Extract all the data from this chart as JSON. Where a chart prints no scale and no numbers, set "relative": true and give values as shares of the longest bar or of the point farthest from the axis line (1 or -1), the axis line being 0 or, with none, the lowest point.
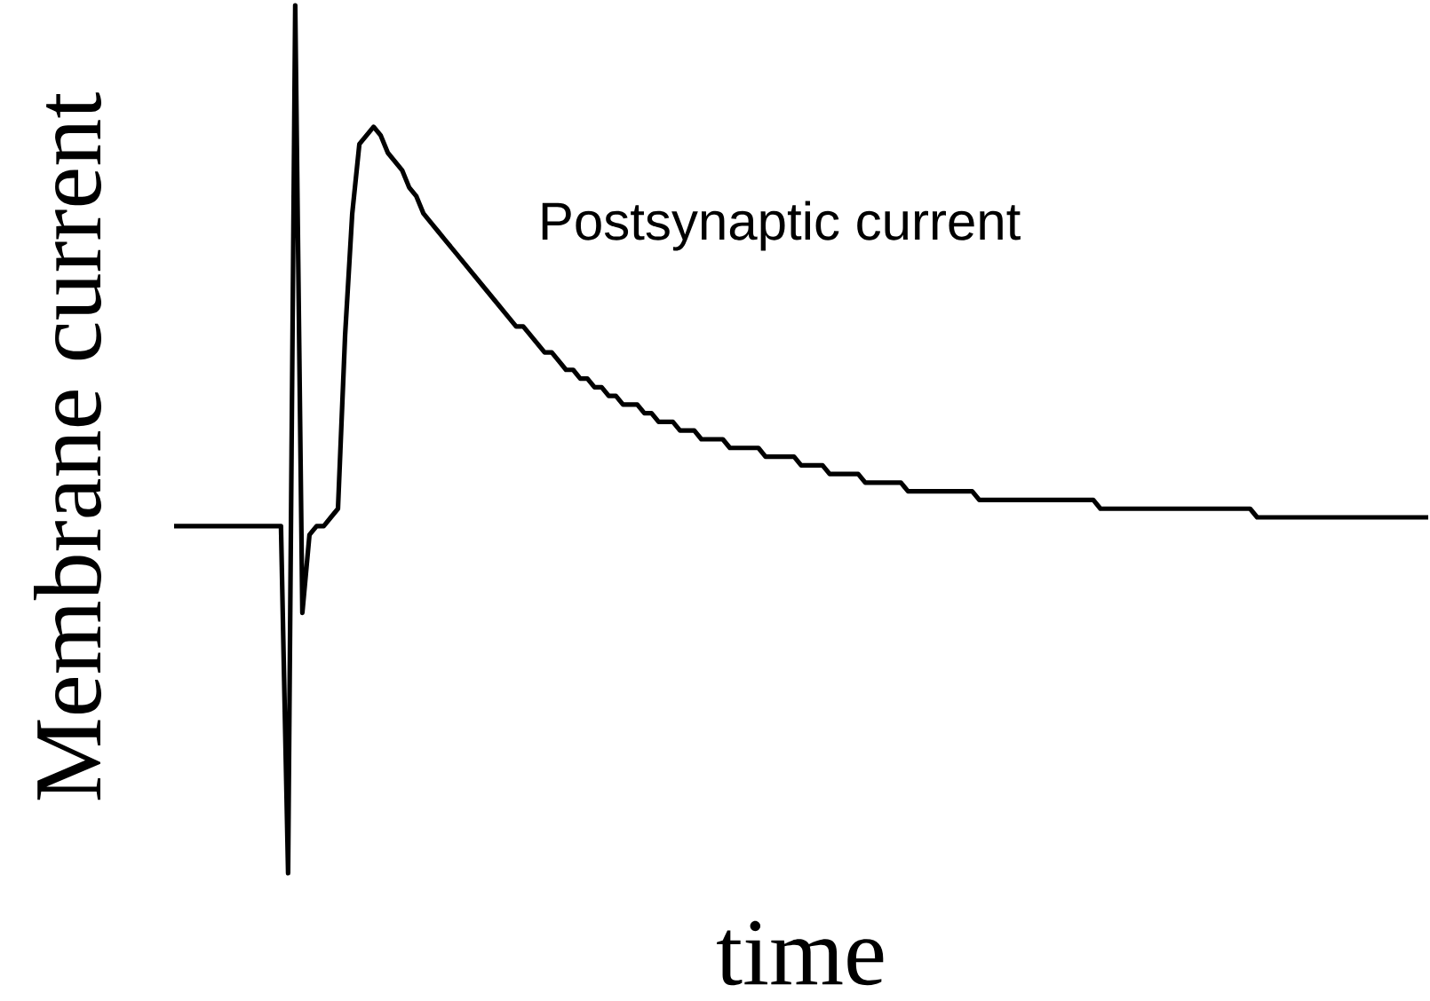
{
  "chart_data": {
    "type": "line",
    "relative": true,
    "xlabel": "time",
    "ylabel": "Membrane current",
    "annotations": [
      "Postsynaptic current"
    ],
    "categories": [
      null,
      null,
      null,
      null,
      null,
      null,
      null,
      null,
      null,
      null,
      null,
      null,
      null,
      null,
      null,
      null,
      null,
      null,
      null,
      null,
      null,
      null,
      null,
      null,
      null,
      null,
      null,
      null,
      null,
      null,
      null,
      null,
      null,
      null,
      null,
      null,
      null,
      null,
      null,
      null,
      null,
      null,
      null,
      null,
      null,
      null,
      null,
      null,
      null,
      null,
      null,
      null,
      null,
      null,
      null,
      null,
      null,
      null,
      null,
      null,
      null,
      null,
      null,
      null,
      null,
      null,
      null,
      null,
      null,
      null,
      null,
      null,
      null,
      null,
      null,
      null,
      null,
      null,
      null,
      null,
      null,
      null,
      null,
      null,
      null,
      null,
      null,
      null,
      null,
      null,
      null,
      null,
      null,
      null,
      null,
      null,
      null,
      null,
      null,
      null,
      null,
      null,
      null,
      null,
      null,
      null,
      null,
      null,
      null,
      null,
      null,
      null,
      null,
      null,
      null,
      null,
      null,
      null,
      null,
      null,
      null,
      null,
      null,
      null,
      null,
      null,
      null,
      null,
      null,
      null,
      null,
      null,
      null,
      null,
      null,
      null,
      null,
      null,
      null,
      null,
      null,
      null,
      null,
      null,
      null,
      null,
      null,
      null,
      null,
      null,
      null,
      null,
      null,
      null,
      null,
      null,
      null,
      null,
      null,
      null,
      null,
      null,
      null,
      null,
      null,
      null,
      null,
      null,
      null,
      null,
      null,
      null,
      null,
      null,
      null,
      null,
      null
    ],
    "series": [
      {
        "color": "#000000",
        "values": [
          0.4,
          0.4,
          0.4,
          0.4,
          0.4,
          0.4,
          0.4,
          0.4,
          0.4,
          0.4,
          0.4,
          0.4,
          0.4,
          0.4,
          0.4,
          0.4,
          0,
          1,
          0.3,
          0.39,
          0.4,
          0.4,
          0.41,
          0.42,
          0.62,
          0.76,
          0.84,
          0.85,
          0.86,
          0.85,
          0.83,
          0.82,
          0.81,
          0.79,
          0.78,
          0.76,
          0.75,
          0.74,
          0.73,
          0.72,
          0.71,
          0.7,
          0.69,
          0.68,
          0.67,
          0.66,
          0.65,
          0.64,
          0.63,
          0.63,
          0.62,
          0.61,
          0.6,
          0.6,
          0.59,
          0.58,
          0.58,
          0.57,
          0.57,
          0.56,
          0.56,
          0.55,
          0.55,
          0.54,
          0.54,
          0.54,
          0.53,
          0.53,
          0.52,
          0.52,
          0.52,
          0.51,
          0.51,
          0.51,
          0.5,
          0.5,
          0.5,
          0.5,
          0.49,
          0.49,
          0.49,
          0.49,
          0.49,
          0.48,
          0.48,
          0.48,
          0.48,
          0.48,
          0.47,
          0.47,
          0.47,
          0.47,
          0.46,
          0.46,
          0.46,
          0.46,
          0.46,
          0.45,
          0.45,
          0.45,
          0.45,
          0.45,
          0.45,
          0.44,
          0.44,
          0.44,
          0.44,
          0.44,
          0.44,
          0.44,
          0.44,
          0.44,
          0.44,
          0.43,
          0.43,
          0.43,
          0.43,
          0.43,
          0.43,
          0.43,
          0.43,
          0.43,
          0.43,
          0.43,
          0.43,
          0.43,
          0.43,
          0.43,
          0.43,
          0.43,
          0.42,
          0.42,
          0.42,
          0.42,
          0.42,
          0.42,
          0.42,
          0.42,
          0.42,
          0.42,
          0.42,
          0.42,
          0.42,
          0.42,
          0.42,
          0.42,
          0.42,
          0.42,
          0.42,
          0.42,
          0.42,
          0.42,
          0.41,
          0.41,
          0.41,
          0.41,
          0.41,
          0.41,
          0.41,
          0.41,
          0.41,
          0.41,
          0.41,
          0.41,
          0.41,
          0.41,
          0.41,
          0.41,
          0.41,
          0.41,
          0.41,
          0.41,
          0.41,
          0.41,
          0.41,
          0.41,
          0.41
        ]
      }
    ]
  }
}
